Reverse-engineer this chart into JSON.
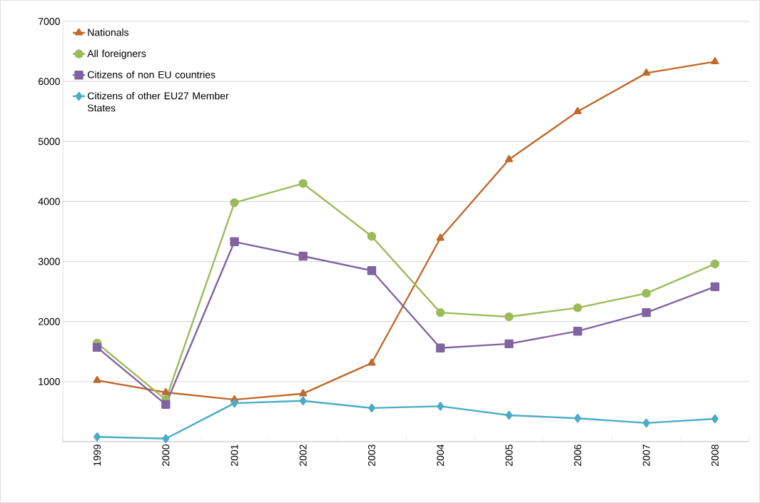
{
  "chart_data": {
    "type": "line",
    "categories": [
      "1999",
      "2000",
      "2001",
      "2002",
      "2003",
      "2004",
      "2005",
      "2006",
      "2007",
      "2008"
    ],
    "series": [
      {
        "name": "Nationals",
        "color": "#c0692b",
        "marker": "triangle",
        "values": [
          1020,
          820,
          700,
          800,
          1310,
          3390,
          4700,
          5500,
          6140,
          6330
        ]
      },
      {
        "name": "All foreigners",
        "color": "#9bbb59",
        "marker": "circle",
        "values": [
          1640,
          700,
          3980,
          4300,
          3420,
          2150,
          2080,
          2230,
          2470,
          2960
        ]
      },
      {
        "name": "Citizens of non EU countries",
        "color": "#8064a2",
        "marker": "square",
        "values": [
          1570,
          620,
          3330,
          3090,
          2850,
          1560,
          1630,
          1840,
          2150,
          2580
        ]
      },
      {
        "name": "Citizens of other EU27 Member States",
        "color": "#4bacc6",
        "marker": "diamond",
        "values": [
          80,
          50,
          640,
          680,
          560,
          590,
          440,
          390,
          310,
          380
        ]
      }
    ],
    "ylim": [
      0,
      7000
    ],
    "yticks": [
      {
        "value": 0,
        "label": null
      },
      1000,
      2000,
      3000,
      4000,
      5000,
      6000,
      7000
    ],
    "grid": "y",
    "legend": "top left",
    "line_style": "solid"
  }
}
